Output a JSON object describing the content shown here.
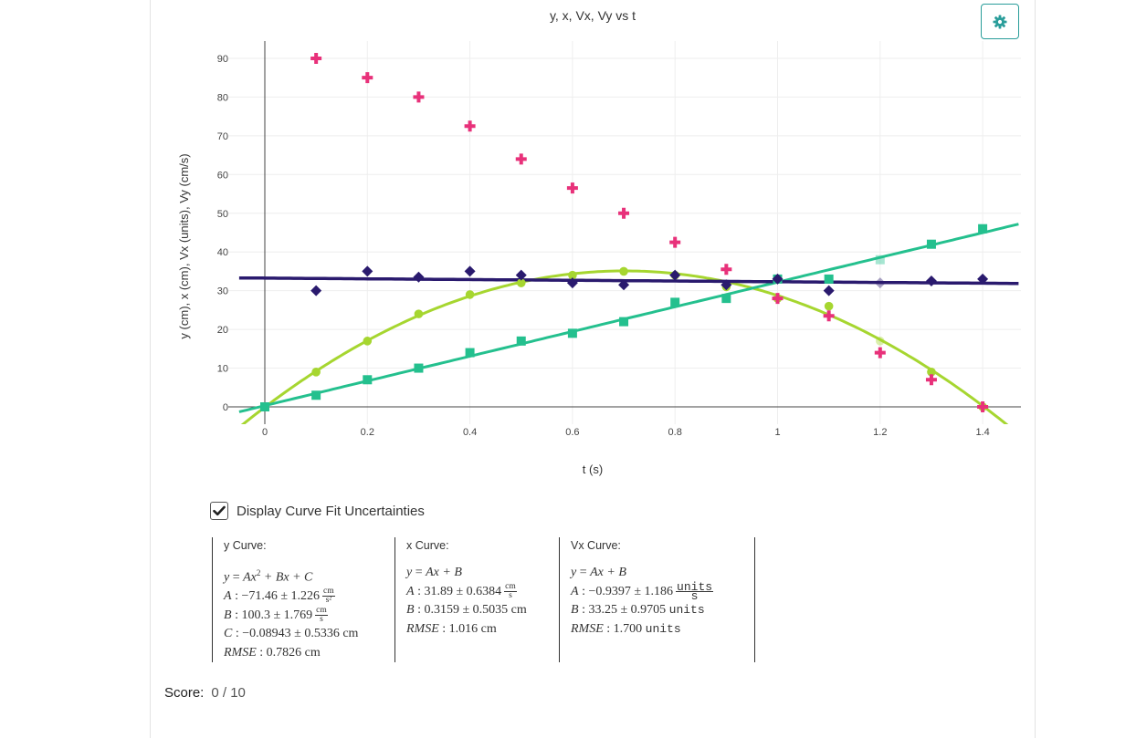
{
  "chart_data": {
    "type": "scatter",
    "title": "y, x, Vx, Vy vs t",
    "xlabel": "t (s)",
    "ylabel": "y (cm), x (cm), Vx (units), Vy (cm/s)",
    "xlim": [
      -0.05,
      1.47
    ],
    "ylim": [
      -4,
      94
    ],
    "x_ticks": [
      0,
      0.2,
      0.4,
      0.6,
      0.8,
      1,
      1.2,
      1.4
    ],
    "x_tick_labels": [
      "0",
      "0.2",
      "0.4",
      "0.6",
      "0.8",
      "1",
      "1.2",
      "1.4"
    ],
    "y_ticks": [
      0,
      10,
      20,
      30,
      40,
      50,
      60,
      70,
      80,
      90
    ],
    "y_tick_labels": [
      "0",
      "10",
      "20",
      "30",
      "40",
      "50",
      "60",
      "70",
      "80",
      "90"
    ],
    "series": [
      {
        "name": "y",
        "marker": "circle",
        "color": "#a6d630",
        "x": [
          0,
          0.1,
          0.2,
          0.3,
          0.4,
          0.5,
          0.6,
          0.7,
          0.8,
          0.9,
          1.0,
          1.1,
          1.2,
          1.3,
          1.4
        ],
        "y": [
          0,
          9,
          17,
          24,
          29,
          32,
          34,
          35,
          34,
          31,
          28,
          26,
          17,
          9,
          0
        ],
        "excluded": [
          12
        ]
      },
      {
        "name": "x",
        "marker": "square",
        "color": "#24c08e",
        "x": [
          0,
          0.1,
          0.2,
          0.3,
          0.4,
          0.5,
          0.6,
          0.7,
          0.8,
          0.9,
          1.0,
          1.1,
          1.2,
          1.3,
          1.4
        ],
        "y": [
          0,
          3,
          7,
          10,
          14,
          17,
          19,
          22,
          27,
          28,
          33,
          33,
          38,
          42,
          46
        ],
        "excluded": [
          12
        ]
      },
      {
        "name": "Vx",
        "marker": "diamond",
        "color": "#2a1a6e",
        "x": [
          0.1,
          0.2,
          0.3,
          0.4,
          0.5,
          0.6,
          0.7,
          0.8,
          0.9,
          1.0,
          1.1,
          1.2,
          1.3,
          1.4
        ],
        "y": [
          30,
          35,
          33.5,
          35,
          34,
          32,
          31.5,
          34,
          31.5,
          33,
          30,
          32,
          32.5,
          33
        ],
        "excluded": [
          11
        ]
      },
      {
        "name": "Vy",
        "marker": "cross",
        "color": "#e8317a",
        "x": [
          0.1,
          0.2,
          0.3,
          0.4,
          0.5,
          0.6,
          0.7,
          0.8,
          0.9,
          1.0,
          1.1,
          1.2,
          1.3,
          1.4
        ],
        "y": [
          90,
          85,
          80,
          72.5,
          64,
          56.5,
          50,
          42.5,
          35.5,
          28,
          23.5,
          14,
          7,
          0
        ],
        "excluded": []
      }
    ],
    "fits": [
      {
        "name": "y",
        "type": "quadratic",
        "color": "#a6d630",
        "A": -71.46,
        "B": 100.3,
        "C": -0.08943
      },
      {
        "name": "x",
        "type": "linear",
        "color": "#24c08e",
        "A": 31.89,
        "B": 0.3159
      },
      {
        "name": "Vx",
        "type": "linear",
        "color": "#2a1a6e",
        "A": -0.9397,
        "B": 33.25
      }
    ]
  },
  "settings_icon": "gear-icon",
  "checkbox": {
    "label": "Display Curve Fit Uncertainties",
    "checked": true,
    "icon": "checkmark-icon"
  },
  "fit_results": [
    {
      "title": "y Curve:",
      "equation": {
        "lhs": "y",
        "eq": " = ",
        "t1": "Ax",
        "sup": "2",
        "t2": " + Bx + C"
      },
      "params": [
        {
          "name": "A",
          "sep": " : ",
          "value": "−71.46 ± 1.226",
          "unit_num": "cm",
          "unit_den": "s²"
        },
        {
          "name": "B",
          "sep": " : ",
          "value": "100.3 ± 1.769",
          "unit_num": "cm",
          "unit_den": "s"
        },
        {
          "name": "C",
          "sep": " : ",
          "value": "−0.08943 ± 0.5336",
          "unit": "cm"
        },
        {
          "name": "RMSE",
          "sep": " : ",
          "value": "0.7826",
          "unit": "cm"
        }
      ]
    },
    {
      "title": "x Curve:",
      "equation": {
        "lhs": "y",
        "eq": " = ",
        "rhs": "Ax + B"
      },
      "params": [
        {
          "name": "A",
          "sep": " : ",
          "value": "31.89 ± 0.6384",
          "unit_num": "cm",
          "unit_den": "s"
        },
        {
          "name": "B",
          "sep": " : ",
          "value": "0.3159 ± 0.5035",
          "unit": "cm"
        },
        {
          "name": "RMSE",
          "sep": " : ",
          "value": "1.016",
          "unit": "cm"
        }
      ]
    },
    {
      "title": "Vx Curve:",
      "equation": {
        "lhs": "y",
        "eq": " = ",
        "rhs": "Ax + B"
      },
      "params": [
        {
          "name": "A",
          "sep": " : ",
          "value": "−0.9397 ± 1.186",
          "unit_num": "units",
          "unit_den": "s"
        },
        {
          "name": "B",
          "sep": " : ",
          "value": "33.25 ± 0.9705",
          "unit": "units"
        },
        {
          "name": "RMSE",
          "sep": " : ",
          "value": "1.700",
          "unit": "units"
        }
      ]
    }
  ],
  "score": {
    "label": "Score:",
    "value": "0 / 10"
  }
}
